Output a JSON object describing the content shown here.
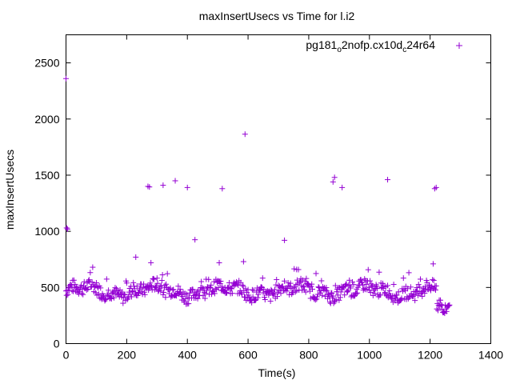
{
  "chart_data": {
    "type": "scatter",
    "title": "maxInsertUsecs vs Time for l.i2",
    "xlabel": "Time(s)",
    "ylabel": "maxInsertUsecs",
    "xlim": [
      0,
      1400
    ],
    "ylim": [
      0,
      2750
    ],
    "xticks": [
      0,
      200,
      400,
      600,
      800,
      1000,
      1200,
      1400
    ],
    "yticks": [
      0,
      500,
      1000,
      1500,
      2000,
      2500
    ],
    "grid": false,
    "legend_position": "top-right",
    "series": [
      {
        "name": "pg181_o2nofp.cx10d_c24r64",
        "name_parts": {
          "a": "pg181",
          "b": "o",
          "c": "2nofp.cx10d",
          "d": "c",
          "e": "24r64"
        },
        "color": "#9400d3",
        "marker": "plus",
        "outliers": [
          [
            0,
            2360
          ],
          [
            2,
            1030
          ],
          [
            5,
            1020
          ],
          [
            230,
            770
          ],
          [
            270,
            1400
          ],
          [
            275,
            1395
          ],
          [
            280,
            720
          ],
          [
            320,
            1410
          ],
          [
            360,
            1450
          ],
          [
            400,
            1390
          ],
          [
            425,
            925
          ],
          [
            505,
            720
          ],
          [
            515,
            1380
          ],
          [
            585,
            730
          ],
          [
            590,
            1865
          ],
          [
            720,
            920
          ],
          [
            760,
            660
          ],
          [
            880,
            1440
          ],
          [
            885,
            1480
          ],
          [
            910,
            1390
          ],
          [
            1060,
            1460
          ],
          [
            1210,
            710
          ],
          [
            1215,
            1380
          ],
          [
            1220,
            1390
          ]
        ],
        "dense_band": {
          "description": "approximately 630 points sampled every ~2 s from 0 to 1265 s",
          "x_start": 0,
          "x_end": 1265,
          "x_step": 2,
          "y_range": [
            250,
            680
          ],
          "typical_y": 470
        }
      }
    ]
  }
}
